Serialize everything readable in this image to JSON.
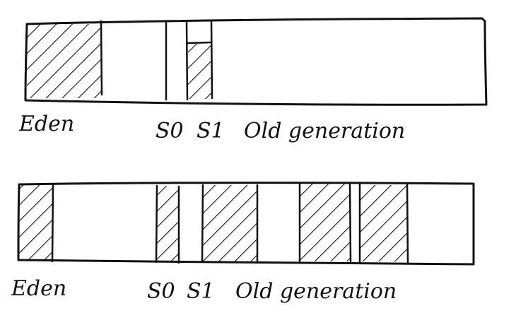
{
  "diagrams": [
    {
      "id": "top",
      "labels": {
        "eden": "Eden",
        "s0": "S0",
        "s1": "S1",
        "old": "Old generation"
      },
      "regions": [
        {
          "name": "eden",
          "filled": true
        },
        {
          "name": "eden-free",
          "filled": false
        },
        {
          "name": "s0",
          "filled": false
        },
        {
          "name": "s1",
          "filled": true
        },
        {
          "name": "old",
          "filled": false
        }
      ]
    },
    {
      "id": "bottom",
      "labels": {
        "eden": "Eden",
        "s0": "S0",
        "s1": "S1",
        "old": "Old generation"
      },
      "regions": [
        {
          "name": "eden",
          "filled": true
        },
        {
          "name": "eden-free",
          "filled": false
        },
        {
          "name": "s0",
          "filled": true
        },
        {
          "name": "s1",
          "filled": false
        },
        {
          "name": "old-block-1",
          "filled": true
        },
        {
          "name": "old-gap-1",
          "filled": false
        },
        {
          "name": "old-block-2",
          "filled": true
        },
        {
          "name": "old-block-3",
          "filled": true
        },
        {
          "name": "old-free",
          "filled": false
        }
      ]
    }
  ]
}
